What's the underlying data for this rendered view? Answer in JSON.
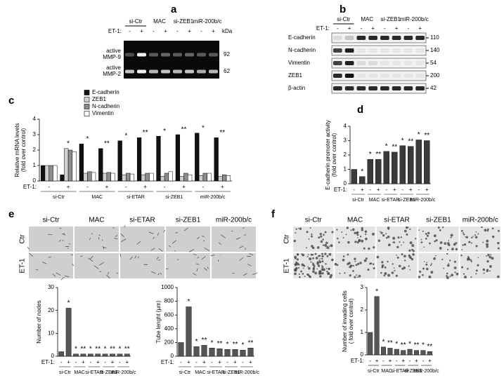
{
  "panel_labels": [
    "a",
    "b",
    "c",
    "d",
    "e",
    "f"
  ],
  "blot_a": {
    "groups": [
      "si-Ctr",
      "MAC",
      "si-ZEB1",
      "miR-200b/c"
    ],
    "et1_label": "ET-1:",
    "et1": [
      "-",
      "+",
      "-",
      "+",
      "-",
      "+",
      "-",
      "+"
    ],
    "kda_label": "kDa",
    "rows": [
      {
        "label": [
          "active",
          "MMP-9"
        ],
        "kda": 92
      },
      {
        "label": [
          "active",
          "MMP-2"
        ],
        "kda": 62
      }
    ]
  },
  "blot_b": {
    "groups": [
      "si-Ctr",
      "MAC",
      "si-ZEB1",
      "miR-200b/c"
    ],
    "et1_label": "ET-1:",
    "et1": [
      "-",
      "+",
      "-",
      "+",
      "-",
      "+",
      "-",
      "+"
    ],
    "rows": [
      {
        "label": "E-cadherin",
        "kda": 110
      },
      {
        "label": "N-cadherin",
        "kda": 140
      },
      {
        "label": "Vimentin",
        "kda": 54
      },
      {
        "label": "ZEB1",
        "kda": 200
      },
      {
        "label": "β-actin",
        "kda": 42
      }
    ]
  },
  "micro_e": {
    "columns": [
      "si-Ctr",
      "MAC",
      "si-ETAR",
      "si-ZEB1",
      "miR-200b/c"
    ],
    "rows": [
      "Ctr",
      "ET-1"
    ]
  },
  "micro_f": {
    "columns": [
      "si-Ctr",
      "MAC",
      "si-ETAR",
      "si-ZEB1",
      "miR-200b/c"
    ],
    "rows": [
      "Ctr",
      "ET-1"
    ]
  },
  "chart_data": [
    {
      "type": "bar",
      "ylabel": [
        "Relative mRNA levels",
        "(fold over control)"
      ],
      "ylim": [
        0,
        4
      ],
      "yticks": [
        0,
        1,
        2,
        3,
        4
      ],
      "x_label": "ET-1:",
      "categories": [
        "-",
        "+",
        "-",
        "+",
        "-",
        "+",
        "-",
        "+",
        "-",
        "+"
      ],
      "groups": [
        "si-Ctr",
        "MAC",
        "si-ETAR",
        "si-ZEB1",
        "miR-200b/c"
      ],
      "series": [
        {
          "name": "E-cadherin",
          "color": "#111111",
          "values": [
            1,
            0.4,
            2.4,
            2.1,
            2.6,
            2.8,
            2.9,
            3.0,
            3.1,
            2.8
          ]
        },
        {
          "name": "ZEB1",
          "color": "#cfcfcf",
          "values": [
            1,
            2.1,
            0.5,
            0.5,
            0.4,
            0.4,
            0.3,
            0.3,
            0.35,
            0.3
          ]
        },
        {
          "name": "N-cadherin",
          "color": "#8c8c8c",
          "values": [
            1,
            2.0,
            0.6,
            0.55,
            0.5,
            0.5,
            0.5,
            0.5,
            0.5,
            0.4
          ]
        },
        {
          "name": "Vimentin",
          "color": "#ffffff",
          "values": [
            1,
            1.9,
            0.55,
            0.5,
            0.45,
            0.5,
            0.6,
            0.4,
            0.5,
            0.35
          ]
        }
      ],
      "annotations": [
        null,
        "*",
        "*",
        "**",
        "*",
        "**",
        "*",
        "**",
        "*",
        "**"
      ]
    },
    {
      "type": "bar",
      "ylabel": [
        "E-cadherin promoter activity",
        "(fold over control)"
      ],
      "ylim": [
        0,
        4
      ],
      "yticks": [
        0,
        1,
        2,
        3,
        4
      ],
      "x_label": "ET-1:",
      "categories": [
        "-",
        "+",
        "-",
        "+",
        "-",
        "+",
        "-",
        "+",
        "-",
        "+"
      ],
      "groups": [
        "si-Ctr",
        "MAC",
        "si-ETAR",
        "si-ZEB1",
        "miR-200b/c"
      ],
      "color": "#3a3a3a",
      "values": [
        1,
        0.5,
        1.7,
        1.7,
        2.25,
        2.2,
        2.65,
        2.6,
        3.05,
        3.0
      ],
      "annotations": [
        null,
        "*",
        "*",
        "**",
        "*",
        "**",
        "*",
        "**",
        "*",
        "**"
      ]
    },
    {
      "type": "bar",
      "ylabel": [
        "Number of nodes"
      ],
      "ylim": [
        0,
        30
      ],
      "yticks": [
        0,
        10,
        20,
        30
      ],
      "x_label": "ET-1:",
      "categories": [
        "-",
        "+",
        "-",
        "+",
        "-",
        "+",
        "-",
        "+",
        "-",
        "+"
      ],
      "groups": [
        "si-Ctr",
        "MAC",
        "si-ETAR",
        "si-ZEB1",
        "miR-200b/c"
      ],
      "color": "#555555",
      "values": [
        2,
        21,
        1,
        1,
        1,
        1,
        1,
        1,
        1,
        1
      ],
      "annotations": [
        null,
        "*",
        "*",
        "**",
        "*",
        "**",
        "*",
        "**",
        "*",
        "**"
      ]
    },
    {
      "type": "bar",
      "ylabel": [
        "Tube lenght (µm)"
      ],
      "ylim": [
        0,
        1000
      ],
      "yticks": [
        0,
        200,
        400,
        600,
        800,
        1000
      ],
      "x_label": "ET-1:",
      "categories": [
        "-",
        "+",
        "-",
        "+",
        "-",
        "+",
        "-",
        "+",
        "-",
        "+"
      ],
      "groups": [
        "si-Ctr",
        "MAC",
        "si-ETAR",
        "si-ZEB1",
        "miR-200b/c"
      ],
      "color": "#555555",
      "values": [
        200,
        720,
        140,
        160,
        120,
        110,
        100,
        100,
        90,
        120
      ],
      "annotations": [
        null,
        "*",
        "*",
        "**",
        "*",
        "**",
        "*",
        "**",
        "*",
        "**"
      ]
    },
    {
      "type": "bar",
      "ylabel": [
        "Number of invading cells",
        "( fold over control)"
      ],
      "ylim": [
        0,
        3
      ],
      "yticks": [
        0,
        1,
        2,
        3
      ],
      "x_label": "ET-1:",
      "categories": [
        "-",
        "+",
        "-",
        "+",
        "-",
        "+",
        "-",
        "+",
        "-",
        "+"
      ],
      "groups": [
        "si-Ctr",
        "MAC",
        "si-ETAR",
        "si-ZEB1",
        "miR-200b/c"
      ],
      "color": "#555555",
      "values": [
        1,
        2.6,
        0.35,
        0.3,
        0.25,
        0.2,
        0.25,
        0.2,
        0.2,
        0.15
      ],
      "annotations": [
        null,
        "*",
        "*",
        "**",
        "*",
        "**",
        "*",
        "**",
        "*",
        "**"
      ]
    }
  ]
}
